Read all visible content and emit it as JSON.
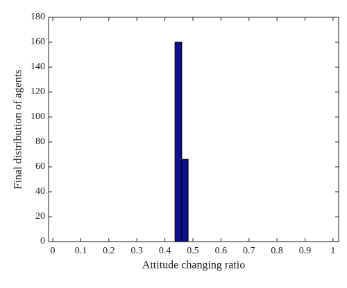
{
  "chart_data": {
    "type": "histogram",
    "xlabel": "Attitude changing ratio",
    "ylabel": "Final distribution of agents",
    "bins": [
      0.436,
      0.46,
      0.483
    ],
    "values": [
      160,
      66
    ],
    "color": "#10108c",
    "xlim": [
      -0.015,
      1.02
    ],
    "xticks": [
      0,
      0.1,
      0.2,
      0.3,
      0.4,
      0.5,
      0.6,
      0.7,
      0.8,
      0.9,
      1
    ],
    "ylim": [
      0,
      180
    ],
    "yticks": [
      0,
      20,
      40,
      60,
      80,
      100,
      120,
      140,
      160,
      180
    ],
    "grid": false
  }
}
